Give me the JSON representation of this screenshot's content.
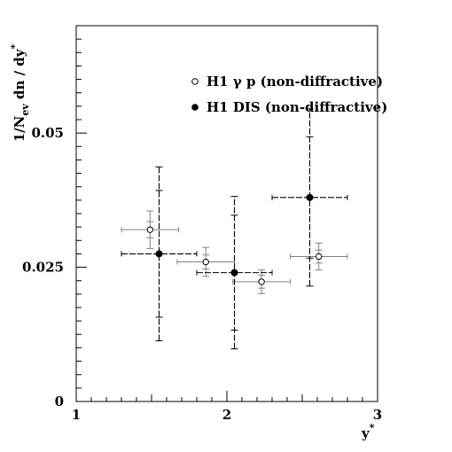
{
  "chart_data": {
    "type": "scatter",
    "title": "",
    "xlabel": "y*",
    "ylabel": "1/N_ev dn / dy*",
    "xlim": [
      1,
      3
    ],
    "ylim": [
      0,
      0.07
    ],
    "x_ticks": [
      1,
      2,
      3
    ],
    "x_tick_labels": [
      "1",
      "2",
      "3"
    ],
    "y_ticks": [
      0,
      0.025,
      0.05
    ],
    "y_tick_labels": [
      "0",
      "0.025",
      "0.05"
    ],
    "grid": false,
    "legend_position": "top-right",
    "series": [
      {
        "name": "H1  γ p (non-diffractive)",
        "marker": "open-circle",
        "color": "#808080",
        "points": [
          {
            "x": 1.49,
            "y": 0.032,
            "xerr": 0.19,
            "yerr_stat": 0.0015,
            "yerr_tot": 0.0035
          },
          {
            "x": 1.86,
            "y": 0.026,
            "xerr": 0.19,
            "yerr_stat": 0.0013,
            "yerr_tot": 0.0027
          },
          {
            "x": 2.23,
            "y": 0.0223,
            "xerr": 0.19,
            "yerr_stat": 0.0012,
            "yerr_tot": 0.0022
          },
          {
            "x": 2.61,
            "y": 0.027,
            "xerr": 0.19,
            "yerr_stat": 0.0012,
            "yerr_tot": 0.0025
          }
        ]
      },
      {
        "name": "H1  DIS (non-diffractive)",
        "marker": "filled-circle",
        "color": "#000000",
        "points": [
          {
            "x": 1.55,
            "y": 0.0275,
            "xerr": 0.25,
            "yerr_stat": 0.0118,
            "yerr_tot": 0.0162
          },
          {
            "x": 2.05,
            "y": 0.024,
            "xerr": 0.25,
            "yerr_stat": 0.0107,
            "yerr_tot": 0.0142
          },
          {
            "x": 2.55,
            "y": 0.038,
            "xerr": 0.25,
            "yerr_stat": 0.0113,
            "yerr_tot": 0.0165
          }
        ]
      }
    ]
  }
}
